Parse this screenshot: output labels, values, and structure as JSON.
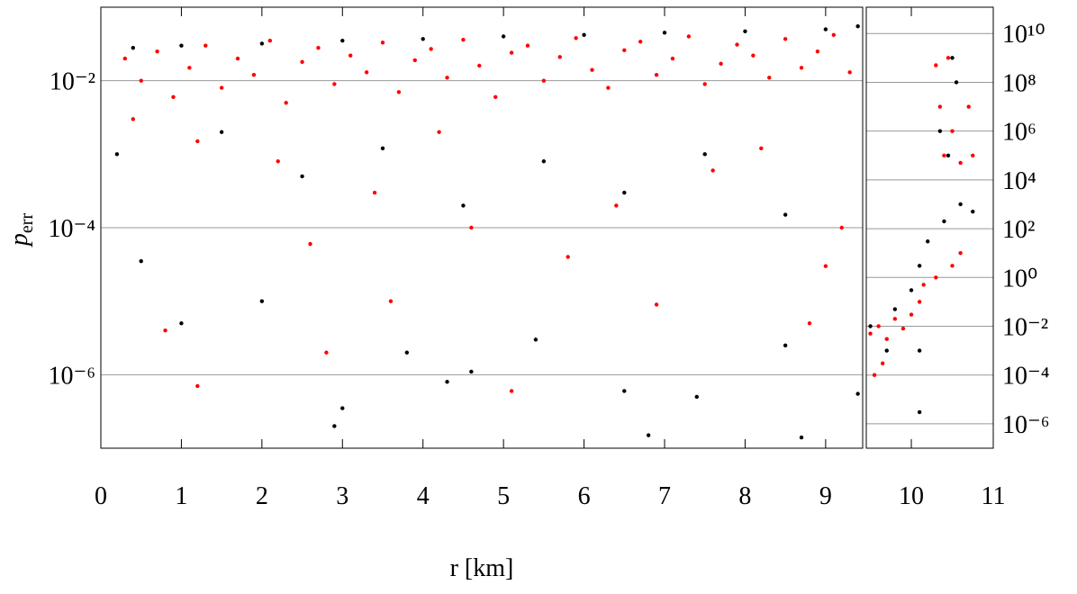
{
  "xlabel": "r [km]",
  "ylabel": "p",
  "ylabel_sub": "err",
  "chart_data": [
    {
      "type": "scatter",
      "xlim": [
        0,
        9.46
      ],
      "ylim": [
        1e-07,
        0.1
      ],
      "log_y": true,
      "grid": true,
      "yaxis_side": "left",
      "xticks": [
        0,
        1,
        2,
        3,
        4,
        5,
        6,
        7,
        8,
        9
      ],
      "yticks": [
        {
          "value": 1e-06,
          "label": "10⁻⁶"
        },
        {
          "value": 0.0001,
          "label": "10⁻⁴"
        },
        {
          "value": 0.01,
          "label": "10⁻²"
        }
      ],
      "series": [
        {
          "color": "#000000",
          "x": [
            0.4,
            1.0,
            2.0,
            3.0,
            4.0,
            5.0,
            6.0,
            7.0,
            8.0,
            9.0,
            9.4,
            1.5,
            2.5,
            3.5,
            4.5,
            5.5,
            6.5,
            7.5,
            8.5,
            0.2,
            1.0,
            2.9,
            3.0,
            4.3,
            6.8,
            8.7,
            7.4,
            6.5,
            9.4,
            3.8,
            4.6,
            5.4,
            8.5,
            0.5,
            2.0
          ],
          "values": [
            0.028,
            0.03,
            0.032,
            0.035,
            0.037,
            0.04,
            0.042,
            0.045,
            0.047,
            0.05,
            0.055,
            0.002,
            0.0005,
            0.0012,
            0.0002,
            0.0008,
            0.0003,
            0.001,
            0.00015,
            0.001,
            5e-06,
            2e-07,
            3.5e-07,
            8e-07,
            1.5e-07,
            1.4e-07,
            5e-07,
            6e-07,
            5.5e-07,
            2e-06,
            1.1e-06,
            3e-06,
            2.5e-06,
            3.5e-05,
            1e-05
          ]
        },
        {
          "color": "#ff0000",
          "x": [
            0.3,
            0.5,
            0.7,
            0.9,
            1.1,
            1.3,
            1.5,
            1.7,
            1.9,
            2.1,
            2.3,
            2.5,
            2.7,
            2.9,
            3.1,
            3.3,
            3.5,
            3.7,
            3.9,
            4.1,
            4.3,
            4.5,
            4.7,
            4.9,
            5.1,
            5.3,
            5.5,
            5.7,
            5.9,
            6.1,
            6.3,
            6.5,
            6.7,
            6.9,
            7.1,
            7.3,
            7.5,
            7.7,
            7.9,
            8.1,
            8.3,
            8.5,
            8.7,
            8.9,
            9.1,
            9.3,
            0.4,
            1.2,
            2.2,
            3.4,
            4.6,
            5.8,
            6.4,
            7.6,
            8.2,
            9.0,
            1.2,
            2.8,
            0.8,
            5.1,
            8.8,
            3.6,
            6.9,
            4.2,
            9.2,
            2.6
          ],
          "values": [
            0.02,
            0.01,
            0.025,
            0.006,
            0.015,
            0.03,
            0.008,
            0.02,
            0.012,
            0.035,
            0.005,
            0.018,
            0.028,
            0.009,
            0.022,
            0.013,
            0.033,
            0.007,
            0.019,
            0.027,
            0.011,
            0.036,
            0.016,
            0.006,
            0.024,
            0.03,
            0.01,
            0.021,
            0.038,
            0.014,
            0.008,
            0.026,
            0.034,
            0.012,
            0.02,
            0.04,
            0.009,
            0.017,
            0.031,
            0.022,
            0.011,
            0.037,
            0.015,
            0.025,
            0.042,
            0.013,
            0.003,
            0.0015,
            0.0008,
            0.0003,
            0.0001,
            4e-05,
            0.0002,
            0.0006,
            0.0012,
            3e-05,
            7e-07,
            2e-06,
            4e-06,
            6e-07,
            5e-06,
            1e-05,
            9e-06,
            0.002,
            0.0001,
            6e-05
          ]
        }
      ]
    },
    {
      "type": "scatter",
      "xlim": [
        9.45,
        11
      ],
      "ylim": [
        1e-07,
        120000000000.0
      ],
      "log_y": true,
      "grid": true,
      "yaxis_side": "right",
      "xticks": [
        10,
        11
      ],
      "yticks": [
        {
          "value": 1e-06,
          "label": "10⁻⁶"
        },
        {
          "value": 0.0001,
          "label": "10⁻⁴"
        },
        {
          "value": 0.01,
          "label": "10⁻²"
        },
        {
          "value": 1,
          "label": "10⁰"
        },
        {
          "value": 100,
          "label": "10²"
        },
        {
          "value": 10000,
          "label": "10⁴"
        },
        {
          "value": 1000000,
          "label": "10⁶"
        },
        {
          "value": 100000000,
          "label": "10⁸"
        },
        {
          "value": 10000000000,
          "label": "10¹⁰"
        }
      ],
      "series": [
        {
          "color": "#000000",
          "x": [
            9.5,
            9.8,
            10.0,
            10.1,
            10.2,
            10.4,
            10.6,
            10.75,
            10.5,
            10.35,
            10.45,
            10.55,
            10.1,
            10.1,
            9.7
          ],
          "values": [
            0.01,
            0.05,
            0.3,
            3,
            30,
            200,
            1000,
            500,
            1000000000,
            1000000,
            100000,
            100000000,
            0.001,
            3e-06,
            0.001
          ]
        },
        {
          "color": "#ff0000",
          "x": [
            9.5,
            9.6,
            9.7,
            9.8,
            9.9,
            10.0,
            10.1,
            9.55,
            9.65,
            10.15,
            10.3,
            10.35,
            10.4,
            10.45,
            10.5,
            10.6,
            10.7,
            10.75,
            10.6,
            10.5,
            10.3
          ],
          "values": [
            0.005,
            0.01,
            0.003,
            0.02,
            0.008,
            0.03,
            0.1,
            0.0001,
            0.0003,
            0.5,
            500000000,
            10000000,
            100000,
            1000000000,
            1000000,
            50000,
            10000000,
            100000,
            10,
            3,
            1
          ]
        }
      ]
    }
  ]
}
